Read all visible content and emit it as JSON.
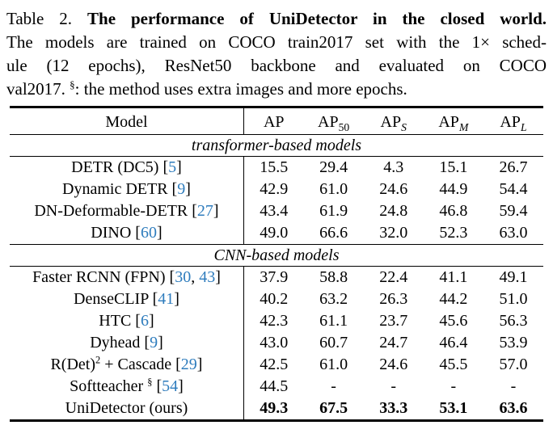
{
  "colors": {
    "citation": "#2e7cbd",
    "text": "#000000",
    "background": "#ffffff"
  },
  "caption": {
    "line1": {
      "prefix": "Table 2. ",
      "bold": "The performance of UniDetector in the closed world."
    },
    "line2": "The models are trained on COCO train2017 set with the 1× sched-",
    "line3": "ule (12 epochs), ResNet50 backbone and evaluated on COCO",
    "line4": {
      "pre": "val2017. ",
      "sup": "§",
      "post": ": the method uses extra images and more epochs."
    }
  },
  "table": {
    "columns": [
      {
        "key": "model",
        "base": "Model",
        "sub": "",
        "italic": false
      },
      {
        "key": "ap",
        "base": "AP",
        "sub": "",
        "italic": false
      },
      {
        "key": "ap50",
        "base": "AP",
        "sub": "50",
        "italic": false
      },
      {
        "key": "aps",
        "base": "AP",
        "sub": "S",
        "italic": true
      },
      {
        "key": "apm",
        "base": "AP",
        "sub": "M",
        "italic": true
      },
      {
        "key": "apl",
        "base": "AP",
        "sub": "L",
        "italic": true
      }
    ],
    "sections": [
      {
        "header": "transformer-based models",
        "rows": [
          {
            "model": [
              {
                "t": "DETR (DC5) ["
              },
              {
                "c": "5"
              },
              {
                "t": "]"
              }
            ],
            "values": [
              "15.5",
              "29.4",
              "4.3",
              "15.1",
              "26.7"
            ],
            "bold": false
          },
          {
            "model": [
              {
                "t": "Dynamic DETR ["
              },
              {
                "c": "9"
              },
              {
                "t": "]"
              }
            ],
            "values": [
              "42.9",
              "61.0",
              "24.6",
              "44.9",
              "54.4"
            ],
            "bold": false
          },
          {
            "model": [
              {
                "t": "DN-Deformable-DETR ["
              },
              {
                "c": "27"
              },
              {
                "t": "]"
              }
            ],
            "values": [
              "43.4",
              "61.9",
              "24.8",
              "46.8",
              "59.4"
            ],
            "bold": false
          },
          {
            "model": [
              {
                "t": "DINO ["
              },
              {
                "c": "60"
              },
              {
                "t": "]"
              }
            ],
            "values": [
              "49.0",
              "66.6",
              "32.0",
              "52.3",
              "63.0"
            ],
            "bold": false
          }
        ]
      },
      {
        "header": "CNN-based models",
        "rows": [
          {
            "model": [
              {
                "t": "Faster RCNN (FPN) ["
              },
              {
                "c": "30"
              },
              {
                "t": ", "
              },
              {
                "c": "43"
              },
              {
                "t": "]"
              }
            ],
            "values": [
              "37.9",
              "58.8",
              "22.4",
              "41.1",
              "49.1"
            ],
            "bold": false
          },
          {
            "model": [
              {
                "t": "DenseCLIP ["
              },
              {
                "c": "41"
              },
              {
                "t": "]"
              }
            ],
            "values": [
              "40.2",
              "63.2",
              "26.3",
              "44.2",
              "51.0"
            ],
            "bold": false
          },
          {
            "model": [
              {
                "t": "HTC ["
              },
              {
                "c": "6"
              },
              {
                "t": "]"
              }
            ],
            "values": [
              "42.3",
              "61.1",
              "23.7",
              "45.6",
              "56.3"
            ],
            "bold": false
          },
          {
            "model": [
              {
                "t": "Dyhead ["
              },
              {
                "c": "9"
              },
              {
                "t": "]"
              }
            ],
            "values": [
              "43.0",
              "60.7",
              "24.7",
              "46.4",
              "53.9"
            ],
            "bold": false
          },
          {
            "model": [
              {
                "t": "R(Det)"
              },
              {
                "s": "2"
              },
              {
                "t": " + Cascade ["
              },
              {
                "c": "29"
              },
              {
                "t": "]"
              }
            ],
            "values": [
              "42.5",
              "61.0",
              "24.6",
              "45.5",
              "57.0"
            ],
            "bold": false
          },
          {
            "model": [
              {
                "t": "Softteacher "
              },
              {
                "s": "§"
              },
              {
                "t": " ["
              },
              {
                "c": "54"
              },
              {
                "t": "]"
              }
            ],
            "values": [
              "44.5",
              "-",
              "-",
              "-",
              "-"
            ],
            "bold": false
          },
          {
            "model": [
              {
                "t": "UniDetector (ours)"
              }
            ],
            "values": [
              "49.3",
              "67.5",
              "33.3",
              "53.1",
              "63.6"
            ],
            "bold": true
          }
        ]
      }
    ]
  }
}
